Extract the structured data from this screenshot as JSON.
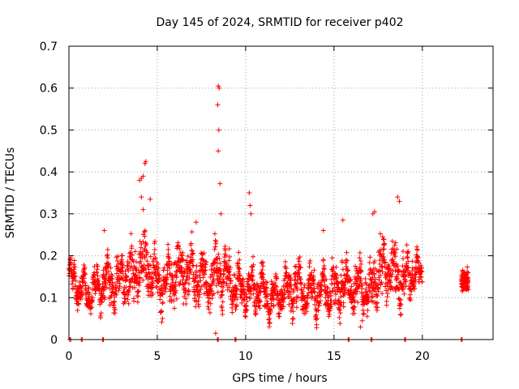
{
  "chart_data": {
    "type": "scatter",
    "title": "Day 145 of 2024, SRMTID for receiver p402",
    "xlabel": "GPS time / hours",
    "ylabel": "SRMTID / TECUs",
    "xlim": [
      0,
      24
    ],
    "ylim": [
      0,
      0.7
    ],
    "x_ticks": [
      "0",
      "5",
      "10",
      "15",
      "20"
    ],
    "y_ticks": [
      "0",
      "0.1",
      "0.2",
      "0.3",
      "0.4",
      "0.5",
      "0.6",
      "0.7"
    ],
    "grid": true,
    "marker": "+",
    "marker_color": "#ff0000",
    "envelope_hours": [
      0,
      0.5,
      1,
      1.5,
      2,
      2.5,
      3,
      3.5,
      4,
      4.5,
      5,
      5.5,
      6,
      6.5,
      7,
      7.5,
      8,
      8.5,
      9,
      9.5,
      10,
      10.5,
      11,
      11.5,
      12,
      12.5,
      13,
      13.5,
      14,
      14.5,
      15,
      15.5,
      16,
      16.5,
      17,
      17.5,
      18,
      18.5,
      19,
      19.5,
      20
    ],
    "envelope_center": [
      0.15,
      0.13,
      0.11,
      0.12,
      0.14,
      0.13,
      0.14,
      0.15,
      0.17,
      0.18,
      0.14,
      0.13,
      0.16,
      0.17,
      0.15,
      0.14,
      0.14,
      0.17,
      0.14,
      0.12,
      0.12,
      0.12,
      0.12,
      0.09,
      0.11,
      0.12,
      0.13,
      0.11,
      0.11,
      0.12,
      0.12,
      0.14,
      0.12,
      0.13,
      0.1,
      0.16,
      0.17,
      0.16,
      0.14,
      0.16,
      0.15
    ],
    "envelope_spread": [
      0.03,
      0.04,
      0.03,
      0.04,
      0.05,
      0.05,
      0.06,
      0.07,
      0.09,
      0.08,
      0.06,
      0.06,
      0.08,
      0.07,
      0.06,
      0.06,
      0.07,
      0.08,
      0.06,
      0.05,
      0.05,
      0.05,
      0.05,
      0.04,
      0.05,
      0.05,
      0.06,
      0.05,
      0.05,
      0.06,
      0.06,
      0.07,
      0.06,
      0.06,
      0.06,
      0.08,
      0.08,
      0.08,
      0.06,
      0.05,
      0.03
    ],
    "late_segment": {
      "x_range": [
        22.2,
        22.6
      ],
      "center": 0.14,
      "spread": 0.03
    },
    "outliers": [
      {
        "x": 4.0,
        "y": 0.38
      },
      {
        "x": 4.1,
        "y": 0.385
      },
      {
        "x": 4.2,
        "y": 0.39
      },
      {
        "x": 4.3,
        "y": 0.42
      },
      {
        "x": 4.35,
        "y": 0.425
      },
      {
        "x": 4.1,
        "y": 0.34
      },
      {
        "x": 4.6,
        "y": 0.335
      },
      {
        "x": 4.2,
        "y": 0.31
      },
      {
        "x": 8.45,
        "y": 0.605
      },
      {
        "x": 8.5,
        "y": 0.6
      },
      {
        "x": 8.42,
        "y": 0.56
      },
      {
        "x": 8.48,
        "y": 0.5
      },
      {
        "x": 8.45,
        "y": 0.45
      },
      {
        "x": 8.55,
        "y": 0.372
      },
      {
        "x": 8.6,
        "y": 0.3
      },
      {
        "x": 8.3,
        "y": 0.015
      },
      {
        "x": 10.2,
        "y": 0.35
      },
      {
        "x": 10.25,
        "y": 0.32
      },
      {
        "x": 10.3,
        "y": 0.3
      },
      {
        "x": 18.6,
        "y": 0.34
      },
      {
        "x": 18.7,
        "y": 0.33
      },
      {
        "x": 17.2,
        "y": 0.3
      },
      {
        "x": 17.3,
        "y": 0.305
      },
      {
        "x": 16.5,
        "y": 0.03
      },
      {
        "x": 16.6,
        "y": 0.045
      },
      {
        "x": 12.7,
        "y": 0.05
      },
      {
        "x": 2.0,
        "y": 0.26
      },
      {
        "x": 7.2,
        "y": 0.28
      },
      {
        "x": 15.5,
        "y": 0.285
      },
      {
        "x": 14.4,
        "y": 0.26
      }
    ],
    "zero_markers_hours": [
      0.05,
      0.7,
      1.9,
      8.4,
      9.4,
      15.8,
      17.1,
      19.0,
      22.2
    ]
  }
}
